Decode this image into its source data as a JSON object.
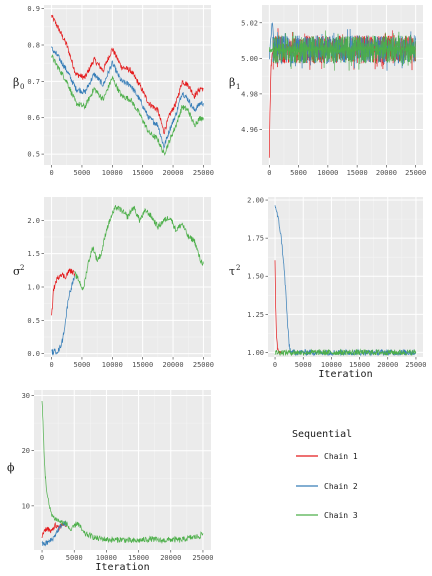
{
  "chart_data": [
    {
      "type": "line",
      "ylabel": "β",
      "ylabel_sub": "0",
      "xlabel": "",
      "xlim": [
        -1250,
        26250
      ],
      "ylim": [
        0.47,
        0.91
      ],
      "x_ticks": [
        "0",
        "5000",
        "10000",
        "15000",
        "20000",
        "25000"
      ],
      "x_tick_values": [
        0,
        5000,
        10000,
        15000,
        20000,
        25000
      ],
      "y_ticks": [
        "0.5",
        "0.6",
        "0.7",
        "0.8",
        "0.9"
      ],
      "y_tick_values": [
        0.5,
        0.6,
        0.7,
        0.8,
        0.9
      ],
      "grid": true,
      "series": [
        {
          "name": "Chain 1",
          "x": [
            0,
            1000,
            2500,
            4000,
            5500,
            7000,
            8500,
            10000,
            11500,
            13000,
            14500,
            16000,
            17500,
            18500,
            19500,
            20500,
            21500,
            22500,
            23500,
            24500,
            25000
          ],
          "y": [
            0.88,
            0.85,
            0.8,
            0.72,
            0.71,
            0.76,
            0.73,
            0.79,
            0.74,
            0.73,
            0.69,
            0.64,
            0.62,
            0.56,
            0.61,
            0.64,
            0.7,
            0.69,
            0.66,
            0.68,
            0.68
          ]
        },
        {
          "name": "Chain 2",
          "x": [
            0,
            1000,
            2500,
            4000,
            5500,
            7000,
            8500,
            10000,
            11500,
            13000,
            14500,
            16000,
            17500,
            18500,
            19500,
            20500,
            21500,
            22500,
            23500,
            24500,
            25000
          ],
          "y": [
            0.79,
            0.77,
            0.73,
            0.68,
            0.67,
            0.72,
            0.69,
            0.75,
            0.7,
            0.69,
            0.65,
            0.6,
            0.58,
            0.52,
            0.57,
            0.61,
            0.67,
            0.65,
            0.62,
            0.64,
            0.64
          ]
        },
        {
          "name": "Chain 3",
          "x": [
            0,
            1000,
            2500,
            4000,
            5500,
            7000,
            8500,
            10000,
            11500,
            13000,
            14500,
            16000,
            17500,
            18500,
            19500,
            20500,
            21500,
            22500,
            23500,
            24500,
            25000
          ],
          "y": [
            0.77,
            0.74,
            0.7,
            0.64,
            0.63,
            0.68,
            0.65,
            0.71,
            0.66,
            0.65,
            0.61,
            0.56,
            0.54,
            0.5,
            0.54,
            0.58,
            0.63,
            0.62,
            0.58,
            0.6,
            0.6
          ]
        }
      ]
    },
    {
      "type": "line",
      "ylabel": "β",
      "ylabel_sub": "1",
      "xlabel": "",
      "xlim": [
        -1250,
        26250
      ],
      "ylim": [
        4.94,
        5.03
      ],
      "x_ticks": [
        "0",
        "5000",
        "10000",
        "15000",
        "20000",
        "25000"
      ],
      "x_tick_values": [
        0,
        5000,
        10000,
        15000,
        20000,
        25000
      ],
      "y_ticks": [
        "4.96",
        "4.98",
        "5.00",
        "5.02"
      ],
      "y_tick_values": [
        4.96,
        4.98,
        5.0,
        5.02
      ],
      "grid": true,
      "band": {
        "center": 5.005,
        "halfwidth": 0.012
      },
      "series": [
        {
          "name": "Chain 1",
          "x": [
            0,
            100,
            300,
            600,
            1000
          ],
          "y": [
            4.945,
            4.97,
            4.995,
            5.005,
            5.005
          ]
        },
        {
          "name": "Chain 2",
          "x": [
            0,
            200,
            500,
            1000
          ],
          "y": [
            5.0,
            5.01,
            5.02,
            5.005
          ]
        },
        {
          "name": "Chain 3",
          "x": [
            0,
            25000
          ],
          "y": [
            5.005,
            5.005
          ]
        }
      ]
    },
    {
      "type": "line",
      "ylabel": "σ",
      "ylabel_sub": "2",
      "xlabel": "",
      "xlim": [
        -1250,
        26250
      ],
      "ylim": [
        -0.05,
        2.35
      ],
      "x_ticks": [
        "0",
        "5000",
        "10000",
        "15000",
        "20000",
        "25000"
      ],
      "x_tick_values": [
        0,
        5000,
        10000,
        15000,
        20000,
        25000
      ],
      "y_ticks": [
        "0.0",
        "0.5",
        "1.0",
        "1.5",
        "2.0"
      ],
      "y_tick_values": [
        0.0,
        0.5,
        1.0,
        1.5,
        2.0
      ],
      "grid": true,
      "series": [
        {
          "name": "Chain 1",
          "x": [
            0,
            300,
            800,
            1500,
            2200,
            3000,
            3800
          ],
          "y": [
            0.55,
            0.95,
            1.1,
            1.2,
            1.15,
            1.25,
            1.2
          ]
        },
        {
          "name": "Chain 2",
          "x": [
            0,
            500,
            1200,
            1800,
            2300,
            2800,
            3400,
            3800
          ],
          "y": [
            0.02,
            0.03,
            0.05,
            0.2,
            0.5,
            0.85,
            1.05,
            1.15
          ]
        },
        {
          "name": "Chain 3",
          "x": [
            3800,
            4500,
            5200,
            6000,
            6800,
            7500,
            8200,
            9000,
            9800,
            10600,
            11500,
            12500,
            13500,
            14500,
            15500,
            16500,
            17500,
            18500,
            19500,
            20500,
            21500,
            22500,
            23500,
            24500,
            25000
          ],
          "y": [
            1.2,
            1.1,
            0.95,
            1.35,
            1.6,
            1.4,
            1.5,
            1.85,
            2.05,
            2.2,
            2.15,
            2.05,
            2.2,
            2.0,
            2.15,
            2.05,
            1.9,
            2.0,
            2.05,
            1.85,
            1.95,
            1.75,
            1.7,
            1.4,
            1.35
          ]
        }
      ]
    },
    {
      "type": "line",
      "ylabel": "τ",
      "ylabel_sub": "2",
      "xlabel": "Iteration",
      "xlim": [
        -1250,
        26250
      ],
      "ylim": [
        0.97,
        2.02
      ],
      "x_ticks": [
        "0",
        "5000",
        "10000",
        "15000",
        "20000",
        "25000"
      ],
      "x_tick_values": [
        0,
        5000,
        10000,
        15000,
        20000,
        25000
      ],
      "y_ticks": [
        "1.00",
        "1.25",
        "1.50",
        "1.75",
        "2.00"
      ],
      "y_tick_values": [
        1.0,
        1.25,
        1.5,
        1.75,
        2.0
      ],
      "grid": true,
      "series": [
        {
          "name": "Chain 1",
          "x": [
            0,
            100,
            250,
            450,
            700,
            1000
          ],
          "y": [
            1.62,
            1.3,
            1.1,
            1.02,
            1.0,
            1.0
          ]
        },
        {
          "name": "Chain 2",
          "x": [
            0,
            300,
            700,
            1100,
            1500,
            1900,
            2200,
            2500,
            2800,
            25000
          ],
          "y": [
            1.97,
            1.92,
            1.85,
            1.75,
            1.6,
            1.4,
            1.2,
            1.05,
            1.0,
            1.0
          ]
        },
        {
          "name": "Chain 3",
          "x": [
            0,
            25000
          ],
          "y": [
            1.0,
            1.0
          ]
        }
      ]
    },
    {
      "type": "line",
      "ylabel": "ϕ",
      "ylabel_sub": "",
      "xlabel": "Iteration",
      "xlim": [
        -1250,
        26250
      ],
      "ylim": [
        2.0,
        31.0
      ],
      "x_ticks": [
        "0",
        "5000",
        "10000",
        "15000",
        "20000",
        "25000"
      ],
      "x_tick_values": [
        0,
        5000,
        10000,
        15000,
        20000,
        25000
      ],
      "y_ticks": [
        "10",
        "20",
        "30"
      ],
      "y_tick_values": [
        10,
        20,
        30
      ],
      "grid": true,
      "series": [
        {
          "name": "Chain 1",
          "x": [
            0,
            300,
            800,
            1400,
            2000,
            2600,
            3200,
            3800
          ],
          "y": [
            4.5,
            5.5,
            6.0,
            5.2,
            6.5,
            5.8,
            6.8,
            6.5
          ]
        },
        {
          "name": "Chain 2",
          "x": [
            0,
            600,
            1200,
            1800,
            2400,
            3000,
            3600,
            3800
          ],
          "y": [
            3.0,
            3.2,
            3.6,
            4.2,
            5.5,
            6.5,
            6.8,
            6.6
          ]
        },
        {
          "name": "Chain 3",
          "x": [
            0,
            150,
            300,
            500,
            800,
            1200,
            1700,
            2300,
            3000,
            3800,
            4500,
            5500,
            6500,
            7500,
            8500,
            9500,
            11000,
            12500,
            14000,
            15500,
            17000,
            18500,
            20000,
            21500,
            23000,
            24500,
            25000
          ],
          "y": [
            29.0,
            25.0,
            20.0,
            15.5,
            12.0,
            9.5,
            8.0,
            7.5,
            7.0,
            6.8,
            5.5,
            7.0,
            5.0,
            4.6,
            4.1,
            4.0,
            3.8,
            3.9,
            3.6,
            3.8,
            4.0,
            3.7,
            3.9,
            3.8,
            4.2,
            4.5,
            5.0
          ]
        }
      ]
    }
  ],
  "legend": {
    "title": "Sequential",
    "entries": [
      "Chain 1",
      "Chain 2",
      "Chain 3"
    ],
    "placement": "bottom-right"
  },
  "colors": {
    "Chain 1": "#e41a1c",
    "Chain 2": "#377eb8",
    "Chain 3": "#4daf4a",
    "panel_bg": "#ebebeb",
    "grid_major": "#ffffff"
  }
}
